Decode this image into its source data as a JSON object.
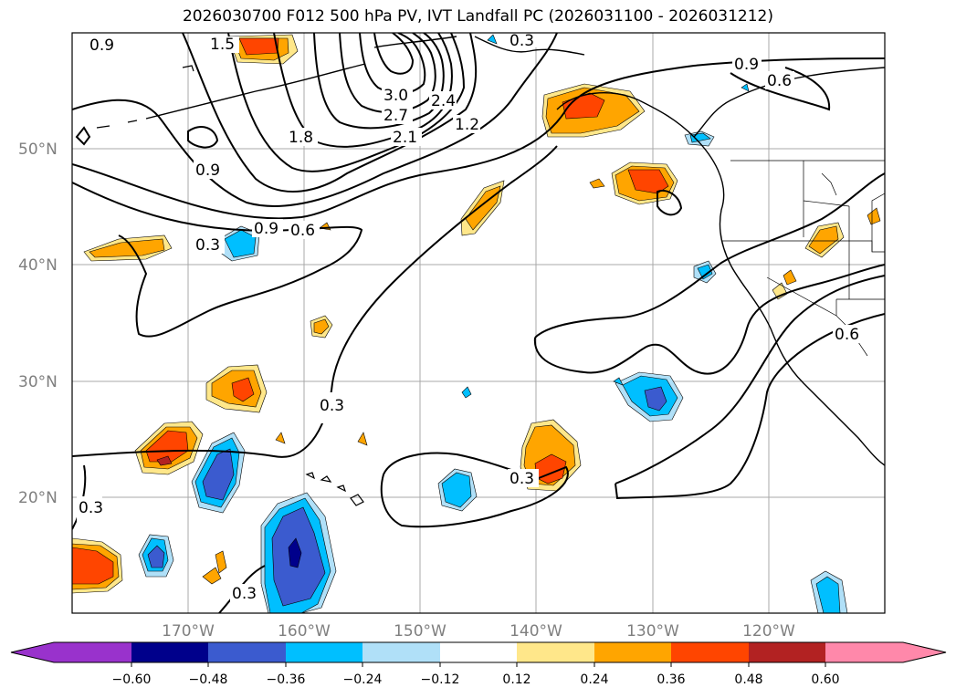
{
  "title": "2026030700 F012 500 hPa PV, IVT Landfall PC (2026031100 - 2026031212)",
  "map": {
    "projection": "PlateCarree",
    "lon_range": [
      -180,
      -110
    ],
    "lat_range": [
      10,
      60
    ],
    "lat_labels": [
      "50°N",
      "40°N",
      "30°N",
      "20°N"
    ],
    "lon_labels": [
      "170°W",
      "160°W",
      "150°W",
      "140°W",
      "130°W",
      "120°W"
    ],
    "gridline_color": "#a8a8a8",
    "coastline_color": "#000000"
  },
  "contours": {
    "variable": "500 hPa PV",
    "levels": [
      0.3,
      0.6,
      0.9,
      1.2,
      1.5,
      1.8,
      2.1,
      2.4,
      2.7,
      3.0
    ],
    "labels": [
      "0.9",
      "1.5",
      "0.3",
      "0.9",
      "0.6",
      "3.0",
      "2.7",
      "2.4",
      "2.1",
      "1.2",
      "1.8",
      "0.9",
      "0.9",
      "0.6",
      "0.3",
      "0.6",
      "0.3",
      "0.3",
      "0.3",
      "0.3"
    ]
  },
  "colorbar": {
    "variable": "IVT Landfall PC",
    "ticks": [
      "−0.60",
      "−0.48",
      "−0.36",
      "−0.24",
      "−0.12",
      "0.12",
      "0.24",
      "0.36",
      "0.48",
      "0.60"
    ],
    "colors": {
      "under": "#9932cc",
      "neg_060_048": "#00008b",
      "neg_048_036": "#3b5bcf",
      "neg_036_024": "#00bfff",
      "neg_024_012": "#b0e0f8",
      "neutral": "#ffffff",
      "pos_012_024": "#ffe78a",
      "pos_024_036": "#ffa500",
      "pos_036_048": "#ff4500",
      "pos_048_060": "#b22222",
      "over": "#ff88aa"
    }
  }
}
